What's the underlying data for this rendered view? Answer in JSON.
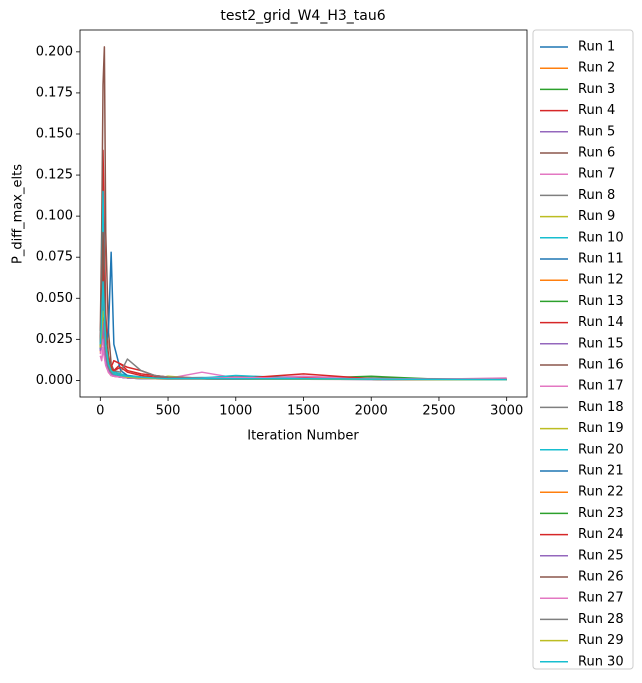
{
  "chart_data": {
    "type": "line",
    "title": "test2_grid_W4_H3_tau6",
    "x_label": "Iteration Number",
    "y_label": "P_diff_max_elts",
    "x": [
      0,
      10,
      20,
      30,
      40,
      60,
      80,
      100,
      150,
      200,
      300,
      400,
      500,
      750,
      1000,
      1500,
      2000,
      2500,
      3000
    ],
    "xlim": [
      -150,
      3150
    ],
    "xticks": [
      0,
      500,
      1000,
      1500,
      2000,
      2500,
      3000
    ],
    "ylim": [
      -0.0101,
      0.2133
    ],
    "yticks": [
      {
        "value": 0,
        "label": "0.000"
      },
      {
        "value": 0.025,
        "label": "0.025"
      },
      {
        "value": 0.05,
        "label": "0.050"
      },
      {
        "value": 0.075,
        "label": "0.075"
      },
      {
        "value": 0.1,
        "label": "0.100"
      },
      {
        "value": 0.125,
        "label": "0.125"
      },
      {
        "value": 0.15,
        "label": "0.150"
      },
      {
        "value": 0.175,
        "label": "0.175"
      },
      {
        "value": 0.2,
        "label": "0.200"
      }
    ],
    "legend": "outside-upper-right",
    "series": [
      {
        "name": "Run 1",
        "color": "#1f77b4",
        "values": [
          0.02,
          0.03,
          0.045,
          0.03,
          0.015,
          0.008,
          0.005,
          0.004,
          0.003,
          0.002,
          0.0015,
          0.0012,
          0.001,
          0.0015,
          0.001,
          0.001,
          0.0008,
          0.0005,
          0.0005
        ]
      },
      {
        "name": "Run 2",
        "color": "#ff7f0e",
        "values": [
          0.018,
          0.025,
          0.035,
          0.022,
          0.012,
          0.006,
          0.004,
          0.003,
          0.002,
          0.0018,
          0.0014,
          0.001,
          0.0012,
          0.001,
          0.0009,
          0.0011,
          0.0007,
          0.0006,
          0.0005
        ]
      },
      {
        "name": "Run 3",
        "color": "#2ca02c",
        "values": [
          0.022,
          0.04,
          0.06,
          0.035,
          0.018,
          0.007,
          0.004,
          0.003,
          0.002,
          0.0015,
          0.0012,
          0.001,
          0.001,
          0.0012,
          0.0009,
          0.0008,
          0.0015,
          0.0006,
          0.0004
        ]
      },
      {
        "name": "Run 4",
        "color": "#d62728",
        "values": [
          0.025,
          0.06,
          0.14,
          0.09,
          0.04,
          0.015,
          0.008,
          0.006,
          0.01,
          0.008,
          0.006,
          0.003,
          0.002,
          0.0015,
          0.002,
          0.0018,
          0.001,
          0.0008,
          0.0006
        ]
      },
      {
        "name": "Run 5",
        "color": "#9467bd",
        "values": [
          0.019,
          0.028,
          0.04,
          0.025,
          0.012,
          0.006,
          0.004,
          0.003,
          0.002,
          0.0015,
          0.0012,
          0.001,
          0.0009,
          0.001,
          0.0008,
          0.0009,
          0.0007,
          0.0005,
          0.0004
        ]
      },
      {
        "name": "Run 6",
        "color": "#8c564b",
        "values": [
          0.03,
          0.09,
          0.18,
          0.203,
          0.09,
          0.03,
          0.01,
          0.006,
          0.003,
          0.002,
          0.0015,
          0.0012,
          0.001,
          0.0012,
          0.001,
          0.0009,
          0.0007,
          0.0006,
          0.0005
        ]
      },
      {
        "name": "Run 7",
        "color": "#e377c2",
        "values": [
          0.015,
          0.012,
          0.02,
          0.015,
          0.01,
          0.005,
          0.003,
          0.0025,
          0.002,
          0.0018,
          0.0015,
          0.002,
          0.0012,
          0.005,
          0.0015,
          0.002,
          0.0012,
          0.001,
          0.0008
        ]
      },
      {
        "name": "Run 8",
        "color": "#7f7f7f",
        "values": [
          0.02,
          0.035,
          0.06,
          0.04,
          0.02,
          0.008,
          0.005,
          0.004,
          0.003,
          0.0025,
          0.002,
          0.0015,
          0.0012,
          0.001,
          0.001,
          0.0012,
          0.0008,
          0.0006,
          0.0005
        ]
      },
      {
        "name": "Run 9",
        "color": "#bcbd22",
        "values": [
          0.02,
          0.03,
          0.045,
          0.05,
          0.025,
          0.01,
          0.006,
          0.004,
          0.003,
          0.002,
          0.0015,
          0.0012,
          0.0025,
          0.001,
          0.0012,
          0.001,
          0.0008,
          0.0006,
          0.0005
        ]
      },
      {
        "name": "Run 10",
        "color": "#17becf",
        "values": [
          0.025,
          0.05,
          0.115,
          0.06,
          0.03,
          0.012,
          0.007,
          0.005,
          0.004,
          0.003,
          0.002,
          0.0018,
          0.0015,
          0.0018,
          0.0015,
          0.002,
          0.0012,
          0.0008,
          0.0005
        ]
      },
      {
        "name": "Run 11",
        "color": "#1f77b4",
        "values": [
          0.02,
          0.03,
          0.04,
          0.03,
          0.02,
          0.03,
          0.078,
          0.022,
          0.006,
          0.003,
          0.002,
          0.0015,
          0.0012,
          0.001,
          0.001,
          0.0009,
          0.0008,
          0.0006,
          0.0005
        ]
      },
      {
        "name": "Run 12",
        "color": "#ff7f0e",
        "values": [
          0.017,
          0.022,
          0.03,
          0.02,
          0.01,
          0.005,
          0.003,
          0.0025,
          0.002,
          0.0015,
          0.0012,
          0.001,
          0.0009,
          0.0009,
          0.0008,
          0.0007,
          0.0006,
          0.0005,
          0.0004
        ]
      },
      {
        "name": "Run 13",
        "color": "#2ca02c",
        "values": [
          0.021,
          0.035,
          0.05,
          0.03,
          0.015,
          0.007,
          0.004,
          0.003,
          0.0025,
          0.002,
          0.0015,
          0.0012,
          0.001,
          0.001,
          0.0009,
          0.0012,
          0.0025,
          0.0007,
          0.0005
        ]
      },
      {
        "name": "Run 14",
        "color": "#d62728",
        "values": [
          0.02,
          0.04,
          0.07,
          0.045,
          0.02,
          0.01,
          0.008,
          0.012,
          0.01,
          0.006,
          0.004,
          0.003,
          0.002,
          0.0015,
          0.002,
          0.0018,
          0.0012,
          0.0008,
          0.0006
        ]
      },
      {
        "name": "Run 15",
        "color": "#9467bd",
        "values": [
          0.018,
          0.026,
          0.038,
          0.024,
          0.012,
          0.006,
          0.004,
          0.003,
          0.002,
          0.0016,
          0.0012,
          0.001,
          0.0009,
          0.0009,
          0.0008,
          0.0008,
          0.0006,
          0.0005,
          0.0004
        ]
      },
      {
        "name": "Run 16",
        "color": "#8c564b",
        "values": [
          0.022,
          0.04,
          0.06,
          0.04,
          0.02,
          0.009,
          0.005,
          0.004,
          0.003,
          0.002,
          0.0015,
          0.0012,
          0.001,
          0.001,
          0.0009,
          0.0009,
          0.0007,
          0.0006,
          0.0005
        ]
      },
      {
        "name": "Run 17",
        "color": "#e377c2",
        "values": [
          0.016,
          0.02,
          0.025,
          0.018,
          0.01,
          0.005,
          0.003,
          0.0025,
          0.002,
          0.0018,
          0.0015,
          0.0012,
          0.001,
          0.0015,
          0.0012,
          0.0025,
          0.001,
          0.0008,
          0.0012
        ]
      },
      {
        "name": "Run 18",
        "color": "#7f7f7f",
        "values": [
          0.02,
          0.03,
          0.05,
          0.035,
          0.02,
          0.01,
          0.007,
          0.006,
          0.005,
          0.013,
          0.006,
          0.003,
          0.002,
          0.0015,
          0.0012,
          0.001,
          0.0008,
          0.0006,
          0.0005
        ]
      },
      {
        "name": "Run 19",
        "color": "#bcbd22",
        "values": [
          0.02,
          0.035,
          0.05,
          0.045,
          0.03,
          0.012,
          0.006,
          0.004,
          0.003,
          0.002,
          0.0015,
          0.0012,
          0.001,
          0.001,
          0.0009,
          0.0008,
          0.0007,
          0.0005,
          0.0004
        ]
      },
      {
        "name": "Run 20",
        "color": "#17becf",
        "values": [
          0.022,
          0.035,
          0.04,
          0.03,
          0.02,
          0.01,
          0.006,
          0.004,
          0.003,
          0.0025,
          0.002,
          0.0015,
          0.0012,
          0.0015,
          0.003,
          0.0012,
          0.001,
          0.0008,
          0.0006
        ]
      },
      {
        "name": "Run 21",
        "color": "#1f77b4",
        "values": [
          0.019,
          0.028,
          0.04,
          0.026,
          0.013,
          0.006,
          0.004,
          0.003,
          0.002,
          0.0015,
          0.0012,
          0.001,
          0.0009,
          0.0009,
          0.0008,
          0.0008,
          0.0006,
          0.0005,
          0.0004
        ]
      },
      {
        "name": "Run 22",
        "color": "#ff7f0e",
        "values": [
          0.02,
          0.03,
          0.042,
          0.028,
          0.014,
          0.007,
          0.004,
          0.003,
          0.0022,
          0.0017,
          0.0013,
          0.0011,
          0.001,
          0.001,
          0.0009,
          0.0008,
          0.0007,
          0.0005,
          0.0004
        ]
      },
      {
        "name": "Run 23",
        "color": "#2ca02c",
        "values": [
          0.021,
          0.032,
          0.048,
          0.03,
          0.016,
          0.007,
          0.004,
          0.003,
          0.0023,
          0.0018,
          0.0014,
          0.0011,
          0.001,
          0.001,
          0.0009,
          0.0009,
          0.0007,
          0.0005,
          0.0004
        ]
      },
      {
        "name": "Run 24",
        "color": "#d62728",
        "values": [
          0.023,
          0.045,
          0.08,
          0.05,
          0.025,
          0.011,
          0.007,
          0.006,
          0.008,
          0.005,
          0.003,
          0.002,
          0.0015,
          0.0012,
          0.001,
          0.004,
          0.001,
          0.0008,
          0.0006
        ]
      },
      {
        "name": "Run 25",
        "color": "#9467bd",
        "values": [
          0.018,
          0.025,
          0.036,
          0.023,
          0.012,
          0.006,
          0.004,
          0.003,
          0.002,
          0.0015,
          0.0012,
          0.001,
          0.0009,
          0.0009,
          0.0008,
          0.0007,
          0.0006,
          0.0005,
          0.0004
        ]
      },
      {
        "name": "Run 26",
        "color": "#8c564b",
        "values": [
          0.024,
          0.05,
          0.09,
          0.06,
          0.03,
          0.012,
          0.006,
          0.004,
          0.003,
          0.002,
          0.0015,
          0.0012,
          0.001,
          0.001,
          0.0009,
          0.0008,
          0.0007,
          0.0005,
          0.0004
        ]
      },
      {
        "name": "Run 27",
        "color": "#e377c2",
        "values": [
          0.015,
          0.013,
          0.018,
          0.014,
          0.009,
          0.005,
          0.003,
          0.0025,
          0.002,
          0.0017,
          0.0014,
          0.0012,
          0.001,
          0.0012,
          0.0018,
          0.0012,
          0.001,
          0.0008,
          0.0015
        ]
      },
      {
        "name": "Run 28",
        "color": "#7f7f7f",
        "values": [
          0.02,
          0.033,
          0.055,
          0.036,
          0.018,
          0.008,
          0.005,
          0.004,
          0.003,
          0.0022,
          0.0017,
          0.0013,
          0.0011,
          0.001,
          0.0009,
          0.0009,
          0.0007,
          0.0006,
          0.0005
        ]
      },
      {
        "name": "Run 29",
        "color": "#bcbd22",
        "values": [
          0.02,
          0.03,
          0.042,
          0.038,
          0.022,
          0.01,
          0.006,
          0.004,
          0.003,
          0.002,
          0.0015,
          0.0012,
          0.001,
          0.001,
          0.0009,
          0.0008,
          0.0007,
          0.0005,
          0.0004
        ]
      },
      {
        "name": "Run 30",
        "color": "#17becf",
        "values": [
          0.022,
          0.038,
          0.06,
          0.04,
          0.022,
          0.01,
          0.006,
          0.004,
          0.003,
          0.0025,
          0.002,
          0.0015,
          0.0012,
          0.0012,
          0.001,
          0.001,
          0.0008,
          0.0006,
          0.0005
        ]
      }
    ]
  }
}
